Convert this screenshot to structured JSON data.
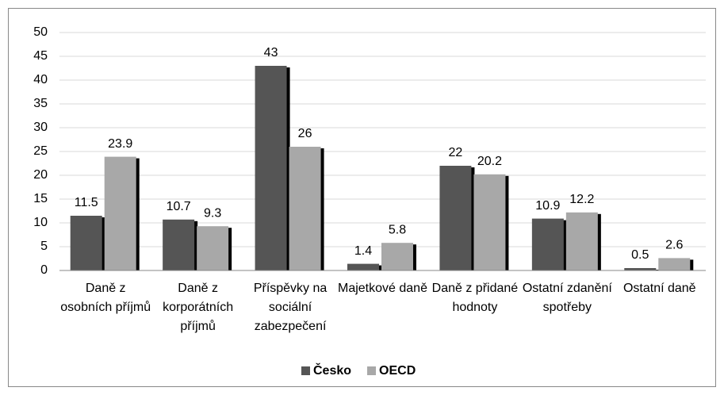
{
  "chart_data": {
    "type": "bar",
    "categories": [
      "Daně z osobních příjmů",
      "Daně z korporátních příjmů",
      "Příspěvky na sociální zabezpečení",
      "Majetkové daně",
      "Daně z přidané hodnoty",
      "Ostatní zdanění spotřeby",
      "Ostatní daně"
    ],
    "series": [
      {
        "name": "Česko",
        "color": "#555555",
        "values": [
          11.5,
          10.7,
          43,
          1.4,
          22,
          10.9,
          0.5
        ]
      },
      {
        "name": "OECD",
        "color": "#a8a8a8",
        "values": [
          23.9,
          9.3,
          26,
          5.8,
          20.2,
          12.2,
          2.6
        ]
      }
    ],
    "ylim": [
      0,
      50
    ],
    "yticks": [
      0,
      5,
      10,
      15,
      20,
      25,
      30,
      35,
      40,
      45,
      50
    ],
    "grid": true,
    "legend": "bottom"
  }
}
